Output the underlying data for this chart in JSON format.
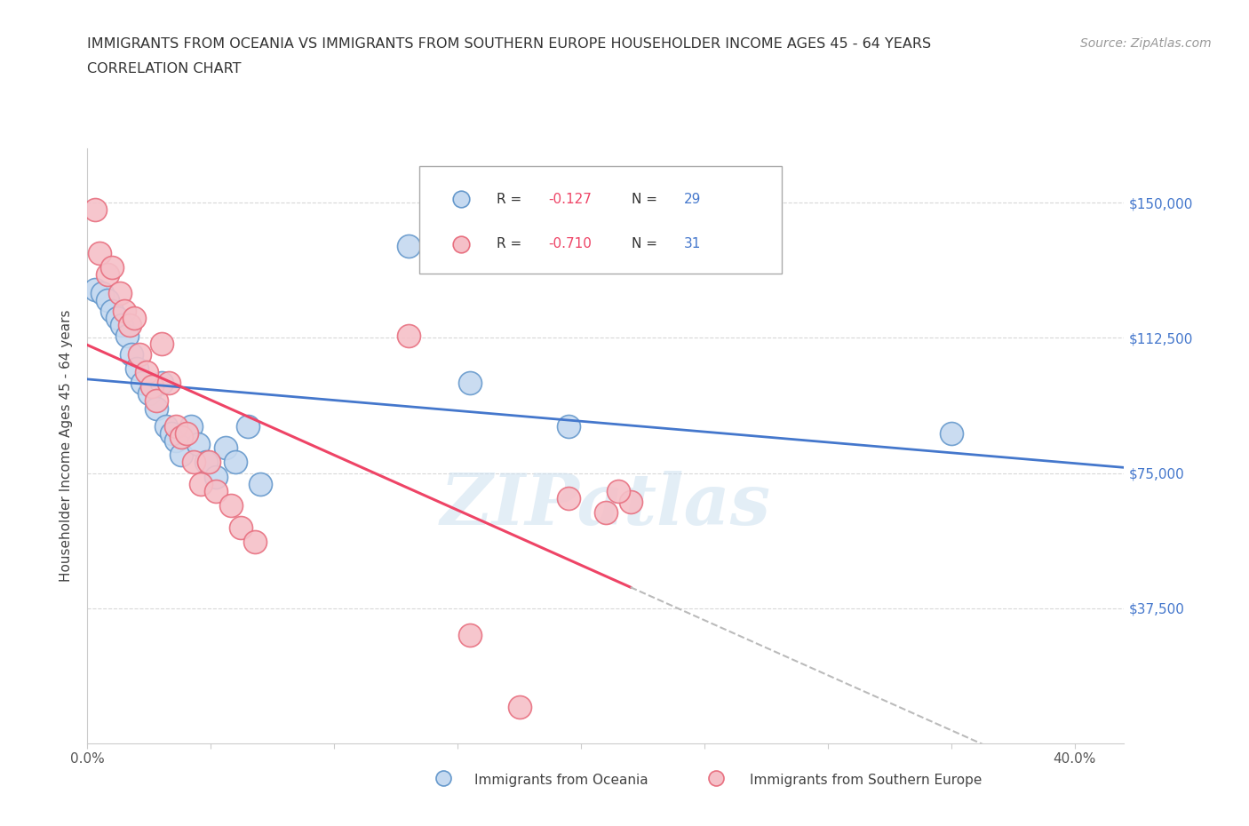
{
  "title_line1": "IMMIGRANTS FROM OCEANIA VS IMMIGRANTS FROM SOUTHERN EUROPE HOUSEHOLDER INCOME AGES 45 - 64 YEARS",
  "title_line2": "CORRELATION CHART",
  "source_text": "Source: ZipAtlas.com",
  "ylabel": "Householder Income Ages 45 - 64 years",
  "xlim": [
    0.0,
    0.42
  ],
  "ylim": [
    0,
    165000
  ],
  "yticks": [
    37500,
    75000,
    112500,
    150000
  ],
  "ytick_labels": [
    "$37,500",
    "$75,000",
    "$112,500",
    "$150,000"
  ],
  "xticks": [
    0.0,
    0.05,
    0.1,
    0.15,
    0.2,
    0.25,
    0.3,
    0.35,
    0.4
  ],
  "xtick_labels": [
    "0.0%",
    "",
    "",
    "",
    "",
    "",
    "",
    "",
    "40.0%"
  ],
  "background_color": "#ffffff",
  "grid_color": "#d8d8d8",
  "oceania_color": "#c5d9f0",
  "oceania_edge_color": "#6699cc",
  "southern_europe_color": "#f5c0c8",
  "southern_europe_edge_color": "#e87080",
  "oceania_line_color": "#4477cc",
  "southern_europe_line_color": "#ee4466",
  "southern_europe_line_dashed_color": "#bbbbbb",
  "tick_label_color": "#4477cc",
  "watermark": "ZIPatlas",
  "oceania_scatter_x": [
    0.003,
    0.006,
    0.008,
    0.01,
    0.012,
    0.014,
    0.016,
    0.018,
    0.02,
    0.022,
    0.025,
    0.028,
    0.03,
    0.032,
    0.034,
    0.036,
    0.038,
    0.042,
    0.045,
    0.048,
    0.052,
    0.056,
    0.06,
    0.065,
    0.07,
    0.13,
    0.155,
    0.195,
    0.35
  ],
  "oceania_scatter_y": [
    126000,
    125000,
    123000,
    120000,
    118000,
    116000,
    113000,
    108000,
    104000,
    100000,
    97000,
    93000,
    100000,
    88000,
    86000,
    84000,
    80000,
    88000,
    83000,
    78000,
    74000,
    82000,
    78000,
    88000,
    72000,
    138000,
    100000,
    88000,
    86000
  ],
  "southern_europe_scatter_x": [
    0.003,
    0.005,
    0.008,
    0.01,
    0.013,
    0.015,
    0.017,
    0.019,
    0.021,
    0.024,
    0.026,
    0.028,
    0.03,
    0.033,
    0.036,
    0.038,
    0.04,
    0.043,
    0.046,
    0.049,
    0.052,
    0.058,
    0.062,
    0.068,
    0.13,
    0.155,
    0.175,
    0.195,
    0.21,
    0.22,
    0.215
  ],
  "southern_europe_scatter_y": [
    148000,
    136000,
    130000,
    132000,
    125000,
    120000,
    116000,
    118000,
    108000,
    103000,
    99000,
    95000,
    111000,
    100000,
    88000,
    85000,
    86000,
    78000,
    72000,
    78000,
    70000,
    66000,
    60000,
    56000,
    113000,
    30000,
    10000,
    68000,
    64000,
    67000,
    70000
  ],
  "oceania_R": -0.127,
  "oceania_N": 29,
  "southern_europe_R": -0.71,
  "southern_europe_N": 31,
  "legend_R_color": "#ee4466",
  "legend_N_color": "#4477cc"
}
